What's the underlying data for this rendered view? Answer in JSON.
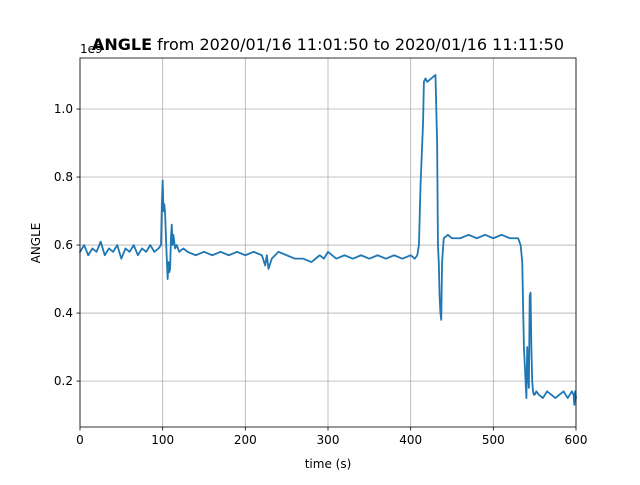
{
  "chart_data": {
    "type": "line",
    "title_bold": "ANGLE",
    "title_rest": " from 2020/01/16 11:01:50 to 2020/01/16 11:11:50",
    "xlabel": "time (s)",
    "ylabel": "ANGLE",
    "y_offset_label": "1e9",
    "xlim": [
      0,
      600
    ],
    "ylim": [
      0.065,
      1.15
    ],
    "x_ticks": [
      0,
      100,
      200,
      300,
      400,
      500,
      600
    ],
    "y_ticks": [
      0.2,
      0.4,
      0.6,
      0.8,
      1.0
    ],
    "x_tick_labels": [
      "0",
      "100",
      "200",
      "300",
      "400",
      "500",
      "600"
    ],
    "y_tick_labels": [
      "0.2",
      "0.4",
      "0.6",
      "0.8",
      "1.0"
    ],
    "grid": true,
    "line_color": "#1f77b4",
    "series": [
      {
        "x": [
          0,
          5,
          10,
          15,
          20,
          25,
          30,
          35,
          40,
          45,
          50,
          55,
          60,
          65,
          70,
          75,
          80,
          85,
          90,
          95,
          98,
          99,
          100,
          101,
          102,
          103,
          104,
          105,
          106,
          107,
          108,
          109,
          110,
          111,
          112,
          113,
          114,
          115,
          117,
          120,
          125,
          130,
          140,
          150,
          160,
          170,
          180,
          190,
          200,
          210,
          220,
          224,
          226,
          228,
          232,
          240,
          250,
          260,
          270,
          280,
          290,
          295,
          300,
          310,
          320,
          330,
          340,
          350,
          360,
          370,
          380,
          390,
          400,
          405,
          408,
          410,
          412,
          414,
          415,
          416,
          418,
          420,
          425,
          430,
          432,
          433,
          434,
          435,
          436,
          437,
          438,
          440,
          445,
          450,
          460,
          470,
          480,
          490,
          500,
          510,
          520,
          530,
          533,
          535,
          536,
          537,
          538,
          539,
          540,
          541,
          542,
          543,
          544,
          545,
          546,
          547,
          548,
          549,
          550,
          552,
          555,
          560,
          565,
          570,
          575,
          580,
          585,
          590,
          595,
          597,
          598,
          599,
          600
        ],
        "y": [
          0.58,
          0.6,
          0.57,
          0.59,
          0.58,
          0.61,
          0.57,
          0.59,
          0.58,
          0.6,
          0.56,
          0.59,
          0.58,
          0.6,
          0.57,
          0.59,
          0.58,
          0.6,
          0.58,
          0.59,
          0.6,
          0.72,
          0.79,
          0.7,
          0.72,
          0.69,
          0.62,
          0.56,
          0.5,
          0.55,
          0.52,
          0.53,
          0.62,
          0.66,
          0.6,
          0.63,
          0.61,
          0.59,
          0.6,
          0.58,
          0.59,
          0.58,
          0.57,
          0.58,
          0.57,
          0.58,
          0.57,
          0.58,
          0.57,
          0.58,
          0.57,
          0.54,
          0.57,
          0.53,
          0.56,
          0.58,
          0.57,
          0.56,
          0.56,
          0.55,
          0.57,
          0.56,
          0.58,
          0.56,
          0.57,
          0.56,
          0.57,
          0.56,
          0.57,
          0.56,
          0.57,
          0.56,
          0.57,
          0.56,
          0.57,
          0.6,
          0.78,
          0.9,
          0.96,
          1.08,
          1.09,
          1.08,
          1.09,
          1.1,
          0.9,
          0.6,
          0.55,
          0.45,
          0.4,
          0.38,
          0.55,
          0.62,
          0.63,
          0.62,
          0.62,
          0.63,
          0.62,
          0.63,
          0.62,
          0.63,
          0.62,
          0.62,
          0.6,
          0.55,
          0.42,
          0.3,
          0.25,
          0.2,
          0.15,
          0.3,
          0.22,
          0.18,
          0.45,
          0.46,
          0.3,
          0.2,
          0.17,
          0.16,
          0.16,
          0.17,
          0.16,
          0.15,
          0.17,
          0.16,
          0.15,
          0.16,
          0.17,
          0.15,
          0.17,
          0.16,
          0.13,
          0.17,
          0.15
        ]
      }
    ]
  }
}
